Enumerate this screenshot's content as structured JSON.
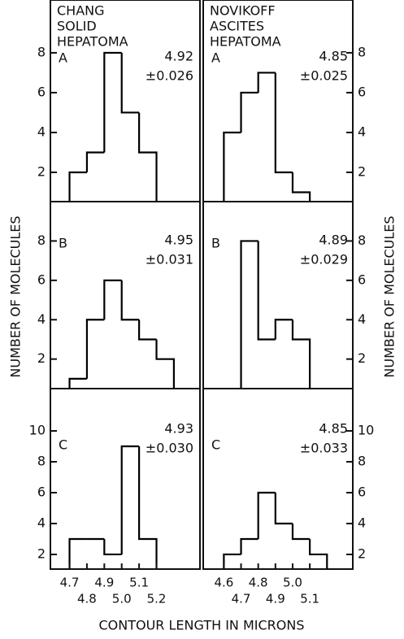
{
  "chart_data": [
    {
      "type": "histogram",
      "subtitle": [
        "CHANG",
        "SOLID",
        "HEPATOMA"
      ],
      "title": "A",
      "annotations": [
        "4.92",
        "±0.026"
      ],
      "bins": [
        4.7,
        4.8,
        4.9,
        5.0,
        5.1,
        5.2
      ],
      "values": [
        2,
        3,
        8,
        5,
        3
      ],
      "xlim": [
        4.59,
        5.45
      ],
      "ylim": [
        0.53,
        10.65
      ],
      "yticks": [
        2,
        4,
        6,
        8
      ],
      "color": "#000000"
    },
    {
      "type": "histogram",
      "subtitle": [
        "NOVIKOFF",
        "ASCITES",
        "HEPATOMA"
      ],
      "title": "A",
      "annotations": [
        "4.85",
        "±0.025"
      ],
      "bins": [
        4.6,
        4.7,
        4.8,
        4.9,
        5.0,
        5.1
      ],
      "values": [
        4,
        6,
        7,
        2,
        1
      ],
      "xlim": [
        4.48,
        5.35
      ],
      "ylim": [
        0.53,
        10.65
      ],
      "yticks": [
        2,
        4,
        6,
        8
      ],
      "color": "#000000"
    },
    {
      "type": "histogram",
      "title": "B",
      "annotations": [
        "4.95",
        "±0.031"
      ],
      "ylabel": "NUMBER OF MOLECULES",
      "bins": [
        4.7,
        4.8,
        4.9,
        5.0,
        5.1,
        5.2,
        5.3
      ],
      "values": [
        1,
        4,
        6,
        4,
        3,
        2
      ],
      "xlim": [
        4.59,
        5.45
      ],
      "ylim": [
        0.5,
        10
      ],
      "yticks": [
        2,
        4,
        6,
        8
      ],
      "color": "#000000"
    },
    {
      "type": "histogram",
      "title": "B",
      "annotations": [
        "4.89",
        "±0.029"
      ],
      "ylabel": "NUMBER OF MOLECULES",
      "bins": [
        4.7,
        4.8,
        4.9,
        5.0,
        5.1
      ],
      "values": [
        8,
        3,
        4,
        3
      ],
      "xlim": [
        4.48,
        5.35
      ],
      "ylim": [
        0.5,
        10
      ],
      "yticks": [
        2,
        4,
        6,
        8
      ],
      "color": "#000000"
    },
    {
      "type": "histogram",
      "title": "C",
      "annotations": [
        "4.93",
        "±0.030"
      ],
      "xlabel": "CONTOUR LENGTH IN MICRONS",
      "bins": [
        4.7,
        4.8,
        4.9,
        5.0,
        5.1,
        5.2
      ],
      "values": [
        3,
        3,
        2,
        9,
        3
      ],
      "xlim": [
        4.59,
        5.45
      ],
      "ylim": [
        1.05,
        12.74
      ],
      "yticks": [
        2,
        4,
        6,
        8,
        10
      ],
      "xticks": [
        4.7,
        4.8,
        4.9,
        {
          "value": 5,
          "label": "5.0"
        },
        5.1,
        5.2
      ],
      "color": "#000000"
    },
    {
      "type": "histogram",
      "title": "C",
      "annotations": [
        "4.85",
        "±0.033"
      ],
      "bins": [
        4.6,
        4.7,
        4.8,
        4.9,
        5.0,
        5.1,
        5.2
      ],
      "values": [
        2,
        3,
        6,
        4,
        3,
        2
      ],
      "xlim": [
        4.48,
        5.35
      ],
      "ylim": [
        1.05,
        12.74
      ],
      "yticks": [
        2,
        4,
        6,
        8,
        10
      ],
      "xticks": [
        4.6,
        4.7,
        4.8,
        4.9,
        {
          "value": 5,
          "label": "5.0"
        },
        5.1
      ],
      "color": "#000000"
    }
  ]
}
